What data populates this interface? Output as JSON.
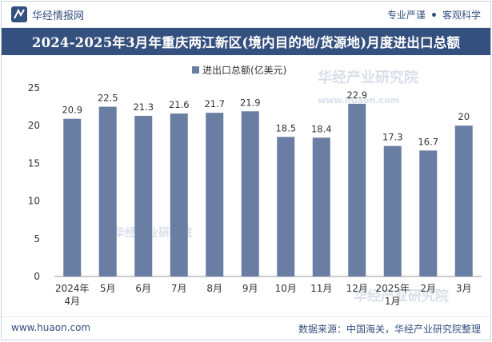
{
  "header": {
    "brand_name": "华经情报网",
    "tag_left": "专业严谨",
    "tag_right": "客观科学"
  },
  "title": "2024-2025年3月年重庆两江新区(境内目的地/货源地)月度进出口总额",
  "footer": {
    "url": "www.huaon.com",
    "source": "数据来源：中国海关，华经产业研究院整理"
  },
  "watermark": {
    "text": "华经产业研究院",
    "url_text": "www.huaon.com"
  },
  "colors": {
    "bar": "#6a7ea3",
    "brand": "#34507e"
  },
  "chart_data": {
    "type": "bar",
    "legend": "进出口总额(亿美元)",
    "legend_position": "top-center",
    "categories": [
      [
        "2024年",
        "4月"
      ],
      [
        "5月"
      ],
      [
        "6月"
      ],
      [
        "7月"
      ],
      [
        "8月"
      ],
      [
        "9月"
      ],
      [
        "10月"
      ],
      [
        "11月"
      ],
      [
        "12月"
      ],
      [
        "2025年",
        "1月"
      ],
      [
        "2月"
      ],
      [
        "3月"
      ]
    ],
    "values": [
      20.9,
      22.5,
      21.3,
      21.6,
      21.7,
      21.9,
      18.5,
      18.4,
      22.9,
      17.3,
      16.7,
      20
    ],
    "value_labels": [
      "20.9",
      "22.5",
      "21.3",
      "21.6",
      "21.7",
      "21.9",
      "18.5",
      "18.4",
      "22.9",
      "17.3",
      "16.7",
      "20"
    ],
    "yticks": [
      0,
      5,
      10,
      15,
      20,
      25
    ],
    "ylim": [
      0,
      25
    ],
    "grid": false
  }
}
